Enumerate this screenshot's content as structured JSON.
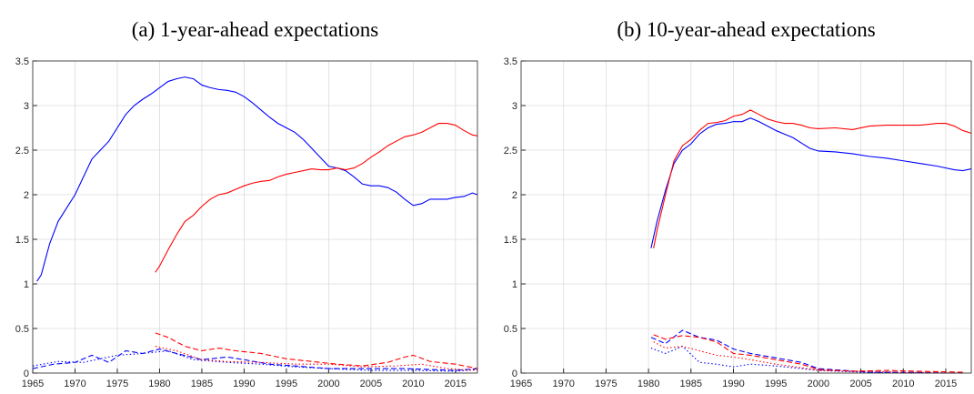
{
  "chart_data": [
    {
      "type": "line",
      "title": "(a) 1-year-ahead expectations",
      "xlim": [
        1965,
        2017.6
      ],
      "ylim": [
        0,
        3.5
      ],
      "xticks": [
        1965,
        1970,
        1975,
        1980,
        1985,
        1990,
        1995,
        2000,
        2005,
        2010,
        2015
      ],
      "yticks": [
        0,
        0.5,
        1,
        1.5,
        2,
        2.5,
        3,
        3.5
      ],
      "grid": true,
      "series": [
        {
          "color": "#0000ff",
          "dash": "solid",
          "x": [
            1965.5,
            1966,
            1967,
            1968,
            1969,
            1970,
            1971,
            1972,
            1973,
            1974,
            1975,
            1976,
            1977,
            1978,
            1979,
            1980,
            1981,
            1982,
            1983,
            1984,
            1985,
            1986,
            1987,
            1988,
            1989,
            1990,
            1991,
            1992,
            1993,
            1994,
            1995,
            1996,
            1997,
            1998,
            1999,
            2000,
            2001,
            2002,
            2003,
            2004,
            2005,
            2006,
            2007,
            2008,
            2009,
            2010,
            2011,
            2012,
            2013,
            2014,
            2015,
            2016,
            2017,
            2017.6
          ],
          "values": [
            1.03,
            1.1,
            1.45,
            1.7,
            1.85,
            2.0,
            2.2,
            2.4,
            2.5,
            2.6,
            2.75,
            2.9,
            3.0,
            3.07,
            3.13,
            3.2,
            3.27,
            3.3,
            3.32,
            3.3,
            3.23,
            3.2,
            3.18,
            3.17,
            3.15,
            3.1,
            3.03,
            2.95,
            2.87,
            2.8,
            2.75,
            2.7,
            2.62,
            2.52,
            2.42,
            2.32,
            2.3,
            2.27,
            2.2,
            2.12,
            2.1,
            2.1,
            2.08,
            2.03,
            1.95,
            1.88,
            1.9,
            1.95,
            1.95,
            1.95,
            1.97,
            1.98,
            2.02,
            2.0
          ]
        },
        {
          "color": "#ff0000",
          "dash": "solid",
          "x": [
            1979.5,
            1980,
            1981,
            1982,
            1983,
            1984,
            1985,
            1986,
            1987,
            1988,
            1989,
            1990,
            1991,
            1992,
            1993,
            1994,
            1995,
            1996,
            1997,
            1998,
            1999,
            2000,
            2001,
            2002,
            2003,
            2004,
            2005,
            2006,
            2007,
            2008,
            2009,
            2010,
            2011,
            2012,
            2013,
            2014,
            2015,
            2016,
            2017,
            2017.6
          ],
          "values": [
            1.13,
            1.2,
            1.38,
            1.55,
            1.7,
            1.77,
            1.87,
            1.95,
            2.0,
            2.02,
            2.06,
            2.1,
            2.13,
            2.15,
            2.16,
            2.2,
            2.23,
            2.25,
            2.27,
            2.29,
            2.28,
            2.28,
            2.3,
            2.28,
            2.3,
            2.35,
            2.42,
            2.48,
            2.55,
            2.6,
            2.65,
            2.67,
            2.7,
            2.75,
            2.8,
            2.8,
            2.78,
            2.72,
            2.67,
            2.66
          ]
        },
        {
          "color": "#0000ff",
          "dash": "dashed",
          "x": [
            1965,
            1967.5,
            1970,
            1972,
            1974,
            1976,
            1978,
            1980,
            1982,
            1985,
            1988,
            1990,
            1993,
            1996,
            2000,
            2003,
            2006,
            2009,
            2012,
            2015,
            2017.6
          ],
          "values": [
            0.05,
            0.1,
            0.12,
            0.2,
            0.12,
            0.25,
            0.22,
            0.27,
            0.22,
            0.15,
            0.18,
            0.15,
            0.1,
            0.08,
            0.05,
            0.05,
            0.05,
            0.05,
            0.04,
            0.03,
            0.05
          ]
        },
        {
          "color": "#0000ff",
          "dash": "dotted",
          "x": [
            1965,
            1968,
            1971,
            1975,
            1978,
            1981,
            1984,
            1988,
            1992,
            1996,
            2000,
            2005,
            2010,
            2015,
            2017.6
          ],
          "values": [
            0.08,
            0.13,
            0.12,
            0.2,
            0.22,
            0.25,
            0.15,
            0.12,
            0.1,
            0.07,
            0.05,
            0.03,
            0.03,
            0.02,
            0.04
          ]
        },
        {
          "color": "#ff0000",
          "dash": "dashed",
          "x": [
            1979.5,
            1981,
            1983,
            1985,
            1987,
            1989,
            1992,
            1995,
            1998,
            2001,
            2004,
            2007,
            2009,
            2010,
            2012,
            2015,
            2017.6
          ],
          "values": [
            0.45,
            0.4,
            0.3,
            0.25,
            0.28,
            0.25,
            0.22,
            0.16,
            0.13,
            0.1,
            0.08,
            0.12,
            0.18,
            0.2,
            0.13,
            0.1,
            0.05
          ]
        },
        {
          "color": "#ff0000",
          "dash": "dotted",
          "x": [
            1979.5,
            1982,
            1985,
            1988,
            1992,
            1996,
            2000,
            2004,
            2008,
            2011,
            2014,
            2017.6
          ],
          "values": [
            0.3,
            0.25,
            0.15,
            0.13,
            0.12,
            0.1,
            0.1,
            0.07,
            0.08,
            0.1,
            0.05,
            0.03
          ]
        }
      ]
    },
    {
      "type": "line",
      "title": "(b) 10-year-ahead expectations",
      "xlim": [
        1965,
        2018
      ],
      "ylim": [
        0,
        3.5
      ],
      "xticks": [
        1965,
        1970,
        1975,
        1980,
        1985,
        1990,
        1995,
        2000,
        2005,
        2010,
        2015
      ],
      "yticks": [
        0,
        0.5,
        1,
        1.5,
        2,
        2.5,
        3,
        3.5
      ],
      "grid": true,
      "series": [
        {
          "color": "#0000ff",
          "dash": "solid",
          "x": [
            1980.3,
            1981,
            1982,
            1983,
            1984,
            1985,
            1986,
            1987,
            1988,
            1989,
            1990,
            1991,
            1992,
            1993,
            1994,
            1995,
            1996,
            1997,
            1998,
            1999,
            2000,
            2002,
            2004,
            2006,
            2008,
            2010,
            2012,
            2014,
            2016,
            2017,
            2018
          ],
          "values": [
            1.4,
            1.7,
            2.05,
            2.35,
            2.5,
            2.57,
            2.68,
            2.75,
            2.79,
            2.8,
            2.82,
            2.82,
            2.86,
            2.82,
            2.77,
            2.72,
            2.68,
            2.64,
            2.58,
            2.52,
            2.49,
            2.48,
            2.46,
            2.43,
            2.41,
            2.38,
            2.35,
            2.32,
            2.28,
            2.27,
            2.29
          ]
        },
        {
          "color": "#ff0000",
          "dash": "solid",
          "x": [
            1980.6,
            1981,
            1982,
            1983,
            1984,
            1985,
            1986,
            1987,
            1988,
            1989,
            1990,
            1991,
            1992,
            1993,
            1994,
            1995,
            1996,
            1997,
            1998,
            1999,
            2000,
            2002,
            2004,
            2006,
            2008,
            2010,
            2012,
            2014,
            2015,
            2016,
            2017,
            2018
          ],
          "values": [
            1.4,
            1.6,
            2.0,
            2.38,
            2.55,
            2.62,
            2.72,
            2.8,
            2.81,
            2.83,
            2.88,
            2.9,
            2.95,
            2.9,
            2.85,
            2.82,
            2.8,
            2.8,
            2.78,
            2.75,
            2.74,
            2.75,
            2.73,
            2.77,
            2.78,
            2.78,
            2.78,
            2.8,
            2.8,
            2.77,
            2.72,
            2.69
          ]
        },
        {
          "color": "#0000ff",
          "dash": "dashed",
          "x": [
            1980.3,
            1982,
            1984,
            1986,
            1988,
            1990,
            1992,
            1995,
            1998,
            2000,
            2003,
            2006,
            2010,
            2015,
            2017
          ],
          "values": [
            0.4,
            0.33,
            0.48,
            0.4,
            0.37,
            0.27,
            0.22,
            0.17,
            0.12,
            0.05,
            0.03,
            0.01,
            0.01,
            0,
            0
          ]
        },
        {
          "color": "#0000ff",
          "dash": "dotted",
          "x": [
            1980.3,
            1982,
            1984,
            1986,
            1988,
            1990,
            1992,
            1995,
            1998,
            2000,
            2005,
            2010,
            2017
          ],
          "values": [
            0.28,
            0.22,
            0.3,
            0.12,
            0.1,
            0.07,
            0.1,
            0.08,
            0.05,
            0.03,
            0.01,
            0,
            0
          ]
        },
        {
          "color": "#ff0000",
          "dash": "dashed",
          "x": [
            1980.6,
            1982,
            1984,
            1986,
            1988,
            1990,
            1992,
            1995,
            1998,
            2000,
            2004,
            2008,
            2012,
            2017
          ],
          "values": [
            0.43,
            0.38,
            0.42,
            0.4,
            0.35,
            0.22,
            0.2,
            0.15,
            0.1,
            0.04,
            0.02,
            0.03,
            0.02,
            0.01
          ]
        },
        {
          "color": "#ff0000",
          "dash": "dotted",
          "x": [
            1980.6,
            1982,
            1984,
            1986,
            1988,
            1990,
            1992,
            1995,
            1998,
            2000,
            2005,
            2010,
            2017
          ],
          "values": [
            0.35,
            0.28,
            0.3,
            0.25,
            0.2,
            0.18,
            0.15,
            0.1,
            0.06,
            0.03,
            0.02,
            0.01,
            0
          ]
        }
      ]
    }
  ]
}
